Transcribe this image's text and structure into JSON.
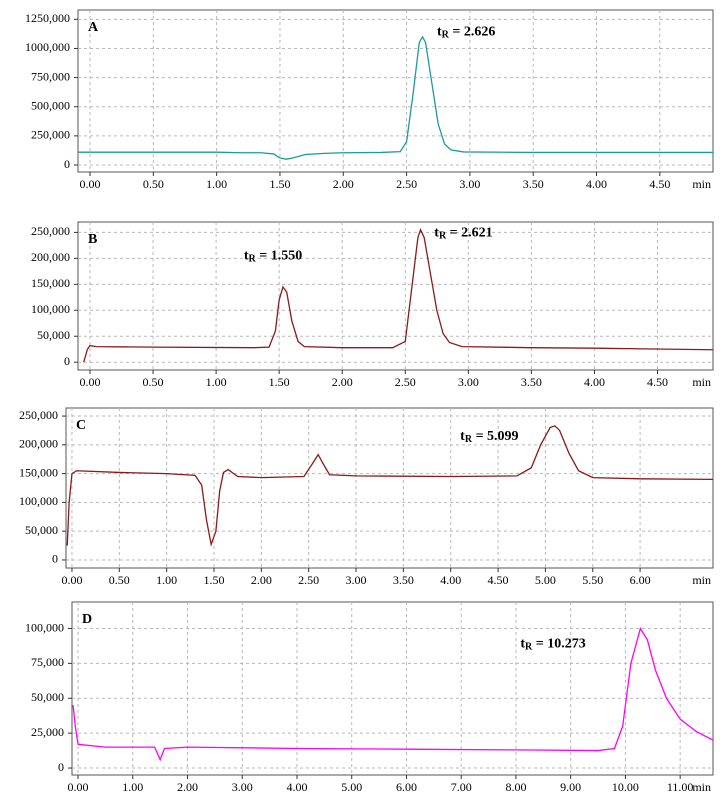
{
  "chart_data": [
    {
      "type": "line",
      "title": "A",
      "color": "#1a9c9c",
      "xlabel": "min",
      "x": [
        -0.09,
        1.0,
        1.2,
        1.35,
        1.45,
        1.5,
        1.55,
        1.6,
        1.7,
        1.85,
        2.0,
        2.3,
        2.45,
        2.5,
        2.55,
        2.6,
        2.626,
        2.65,
        2.7,
        2.75,
        2.8,
        2.85,
        2.95,
        3.5,
        4.92
      ],
      "values": [
        110000,
        110000,
        105000,
        105000,
        95000,
        60000,
        50000,
        60000,
        90000,
        100000,
        105000,
        108000,
        115000,
        200000,
        600000,
        1050000,
        1100000,
        1050000,
        700000,
        350000,
        180000,
        130000,
        112000,
        108000,
        108000
      ],
      "xlim": [
        -0.095,
        4.92
      ],
      "ylim": [
        -60000,
        1330000
      ],
      "xticks": [
        {
          "value": 0,
          "label": "0.00"
        },
        {
          "value": 0.5,
          "label": "0.50"
        },
        {
          "value": 1,
          "label": "1.00"
        },
        {
          "value": 1.5,
          "label": "1.50"
        },
        {
          "value": 2,
          "label": "2.00"
        },
        {
          "value": 2.5,
          "label": "2.50"
        },
        {
          "value": 3,
          "label": "3.00"
        },
        {
          "value": 3.5,
          "label": "3.50"
        },
        {
          "value": 4,
          "label": "4.00"
        },
        {
          "value": 4.5,
          "label": "4.50"
        }
      ],
      "yticks": [
        0,
        {
          "value": 250000,
          "label": "250,000"
        },
        {
          "value": 500000,
          "label": "500,000"
        },
        {
          "value": 750000,
          "label": "750,000"
        },
        {
          "value": 1000000,
          "label": "1000,000"
        },
        {
          "value": 1250000,
          "label": "1250,000"
        }
      ],
      "grid": true,
      "annotations": [
        {
          "t": "t",
          "sub": "R",
          "text": " = 2.626",
          "x": 2.74,
          "y": 1138000
        }
      ]
    },
    {
      "type": "line",
      "title": "B",
      "color": "#8b1a1a",
      "xlabel": "min",
      "x": [
        -0.05,
        -0.02,
        0.0,
        0.05,
        0.5,
        1.3,
        1.42,
        1.47,
        1.5,
        1.53,
        1.56,
        1.6,
        1.65,
        1.7,
        2.0,
        2.4,
        2.5,
        2.55,
        2.6,
        2.621,
        2.65,
        2.7,
        2.75,
        2.8,
        2.85,
        2.95,
        3.5,
        4.0,
        4.94
      ],
      "values": [
        0,
        25000,
        32000,
        30000,
        29000,
        28000,
        29000,
        60000,
        120000,
        145000,
        135000,
        80000,
        40000,
        30000,
        28000,
        28000,
        40000,
        140000,
        240000,
        255000,
        240000,
        170000,
        100000,
        55000,
        38000,
        30000,
        28000,
        27000,
        24000
      ],
      "xlim": [
        -0.095,
        4.94
      ],
      "ylim": [
        -15000,
        270000
      ],
      "xticks": [
        {
          "value": 0,
          "label": "0.00"
        },
        {
          "value": 0.5,
          "label": "0.50"
        },
        {
          "value": 1,
          "label": "1.00"
        },
        {
          "value": 1.5,
          "label": "1.50"
        },
        {
          "value": 2,
          "label": "2.00"
        },
        {
          "value": 2.5,
          "label": "2.50"
        },
        {
          "value": 3,
          "label": "3.00"
        },
        {
          "value": 3.5,
          "label": "3.50"
        },
        {
          "value": 4,
          "label": "4.00"
        },
        {
          "value": 4.5,
          "label": "4.50"
        }
      ],
      "yticks": [
        0,
        {
          "value": 50000,
          "label": "50,000"
        },
        {
          "value": 100000,
          "label": "100,000"
        },
        {
          "value": 150000,
          "label": "150,000"
        },
        {
          "value": 200000,
          "label": "200,000"
        },
        {
          "value": 250000,
          "label": "250,000"
        }
      ],
      "grid": true,
      "annotations": [
        {
          "t": "t",
          "sub": "R",
          "text": " = 1.550",
          "x": 1.22,
          "y": 204000
        },
        {
          "t": "t",
          "sub": "R",
          "text": " = 2.621",
          "x": 2.73,
          "y": 248000
        }
      ]
    },
    {
      "type": "line",
      "title": "C",
      "color": "#8b1a1a",
      "xlabel": "min",
      "x": [
        -0.05,
        -0.03,
        0.0,
        0.05,
        0.5,
        1.0,
        1.3,
        1.37,
        1.42,
        1.47,
        1.52,
        1.56,
        1.6,
        1.65,
        1.75,
        2.0,
        2.45,
        2.55,
        2.6,
        2.65,
        2.72,
        3.0,
        4.0,
        4.7,
        4.85,
        4.95,
        5.05,
        5.099,
        5.15,
        5.25,
        5.35,
        5.5,
        6.0,
        6.77
      ],
      "values": [
        25000,
        100000,
        150000,
        155000,
        152000,
        150000,
        147000,
        130000,
        70000,
        27000,
        50000,
        120000,
        152000,
        157000,
        145000,
        143000,
        145000,
        170000,
        183000,
        168000,
        148000,
        146000,
        145000,
        146000,
        160000,
        200000,
        230000,
        233000,
        225000,
        185000,
        155000,
        143000,
        141000,
        140000
      ],
      "xlim": [
        -0.063,
        6.77
      ],
      "ylim": [
        -14000,
        264000
      ],
      "xticks": [
        {
          "value": 0,
          "label": "0.00"
        },
        {
          "value": 0.5,
          "label": "0.50"
        },
        {
          "value": 1,
          "label": "1.00"
        },
        {
          "value": 1.5,
          "label": "1.50"
        },
        {
          "value": 2,
          "label": "2.00"
        },
        {
          "value": 2.5,
          "label": "2.50"
        },
        {
          "value": 3,
          "label": "3.00"
        },
        {
          "value": 3.5,
          "label": "3.50"
        },
        {
          "value": 4,
          "label": "4.00"
        },
        {
          "value": 4.5,
          "label": "4.50"
        },
        {
          "value": 5,
          "label": "5.00"
        },
        {
          "value": 5.5,
          "label": "5.50"
        },
        {
          "value": 6,
          "label": "6.00"
        }
      ],
      "yticks": [
        0,
        {
          "value": 50000,
          "label": "50,000"
        },
        {
          "value": 100000,
          "label": "100,000"
        },
        {
          "value": 150000,
          "label": "150,000"
        },
        {
          "value": 200000,
          "label": "200,000"
        },
        {
          "value": 250000,
          "label": "250,000"
        }
      ],
      "grid": true,
      "annotations": [
        {
          "t": "t",
          "sub": "R",
          "text": " = 5.099",
          "x": 4.1,
          "y": 213500
        }
      ]
    },
    {
      "type": "line",
      "title": "D",
      "color": "#ff00ff",
      "xlabel": "min",
      "x": [
        -0.09,
        -0.05,
        0.0,
        0.5,
        1.4,
        1.5,
        1.58,
        2.0,
        4.0,
        6.0,
        8.0,
        9.5,
        9.8,
        9.95,
        10.1,
        10.273,
        10.4,
        10.55,
        10.75,
        11.0,
        11.3,
        11.6
      ],
      "values": [
        45000,
        30000,
        17000,
        15000,
        15000,
        6000,
        14000,
        15000,
        14000,
        13500,
        13000,
        12500,
        14000,
        30000,
        75000,
        100000,
        92000,
        70000,
        50000,
        35000,
        26000,
        20000
      ],
      "xlim": [
        -0.11,
        11.6
      ],
      "ylim": [
        -5000,
        119000
      ],
      "xticks": [
        {
          "value": 0,
          "label": "0.00"
        },
        {
          "value": 1,
          "label": "1.00"
        },
        {
          "value": 2,
          "label": "2.00"
        },
        {
          "value": 3,
          "label": "3.00"
        },
        {
          "value": 4,
          "label": "4.00"
        },
        {
          "value": 5,
          "label": "5.00"
        },
        {
          "value": 6,
          "label": "6.00"
        },
        {
          "value": 7,
          "label": "7.00"
        },
        {
          "value": 8,
          "label": "8.00"
        },
        {
          "value": 9,
          "label": "9.00"
        },
        {
          "value": 10,
          "label": "10.00"
        },
        {
          "value": 11,
          "label": "11.00"
        }
      ],
      "yticks": [
        0,
        {
          "value": 25000,
          "label": "25,000"
        },
        {
          "value": 50000,
          "label": "50,000"
        },
        {
          "value": 75000,
          "label": "75,000"
        },
        {
          "value": 100000,
          "label": "100,000"
        }
      ],
      "grid": true,
      "annotations": [
        {
          "t": "t",
          "sub": "R",
          "text": " = 10.273",
          "x": 8.08,
          "y": 88500
        }
      ]
    }
  ]
}
